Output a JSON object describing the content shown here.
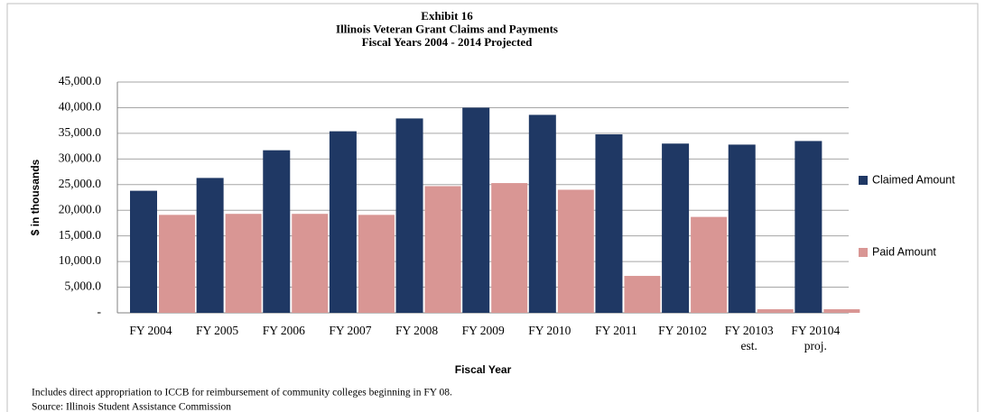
{
  "chart_data": {
    "type": "bar",
    "title_lines": [
      "Exhibit 16",
      "Illinois Veteran Grant Claims and Payments",
      "Fiscal Years 2004 - 2014 Projected"
    ],
    "y_label": "$ in thousands",
    "x_label": "Fiscal Year",
    "categories": [
      "FY 2004",
      "FY 2005",
      "FY 2006",
      "FY 2007",
      "FY 2008",
      "FY 2009",
      "FY 2010",
      "FY 2011",
      "FY 20102",
      "FY 20103 est.",
      "FY 20104 proj."
    ],
    "series": [
      {
        "name": "Claimed Amount",
        "color": "#1f3864",
        "values": [
          23800,
          26300,
          31700,
          35400,
          37900,
          40000,
          38600,
          34800,
          33000,
          32800,
          33500
        ]
      },
      {
        "name": "Paid Amount",
        "color": "#d99694",
        "values": [
          19100,
          19300,
          19300,
          19100,
          24700,
          25300,
          24000,
          7200,
          18700,
          700,
          700
        ]
      }
    ],
    "ylim": [
      0,
      45000
    ],
    "yticks": [
      {
        "value": 0,
        "label": "-"
      },
      {
        "value": 5000,
        "label": "5,000.0"
      },
      {
        "value": 10000,
        "label": "10,000.0"
      },
      {
        "value": 15000,
        "label": "15,000.0"
      },
      {
        "value": 20000,
        "label": "20,000.0"
      },
      {
        "value": 25000,
        "label": "25,000.0"
      },
      {
        "value": 30000,
        "label": "30,000.0"
      },
      {
        "value": 35000,
        "label": "35,000.0"
      },
      {
        "value": 40000,
        "label": "40,000.0"
      },
      {
        "value": 45000,
        "label": "45,000.0"
      }
    ],
    "grid": true,
    "legend": "right",
    "notes": [
      "Includes direct appropriation to ICCB for reimbursement of community colleges beginning in FY 08.",
      "Source: Illinois Student Assistance Commission"
    ]
  }
}
